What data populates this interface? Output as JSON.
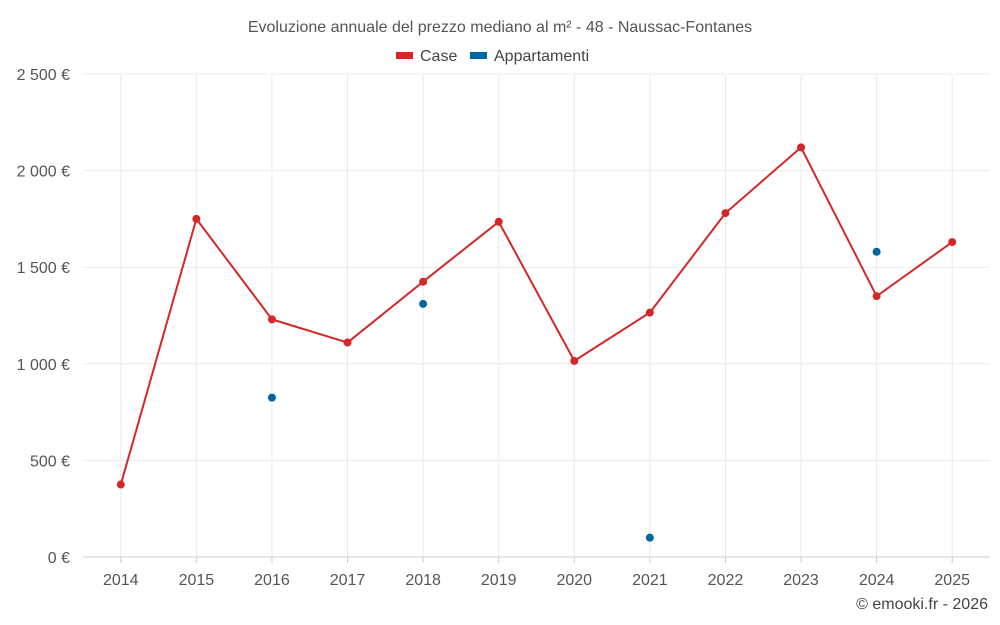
{
  "chart_data": {
    "type": "line",
    "title": "Evoluzione annuale del prezzo mediano al m² - 48 - Naussac-Fontanes",
    "categories": [
      "2014",
      "2015",
      "2016",
      "2017",
      "2018",
      "2019",
      "2020",
      "2021",
      "2022",
      "2023",
      "2024",
      "2025"
    ],
    "series": [
      {
        "name": "Case",
        "color": "#d62728",
        "style": "line",
        "values": [
          375,
          1750,
          1230,
          1110,
          1425,
          1735,
          1015,
          1265,
          1780,
          2120,
          1350,
          1630
        ]
      },
      {
        "name": "Appartamenti",
        "color": "#0066a1",
        "style": "points",
        "values": [
          null,
          null,
          825,
          null,
          1310,
          null,
          null,
          100,
          null,
          null,
          1580,
          null
        ]
      }
    ],
    "ylim": [
      0,
      2500
    ],
    "yticks": [
      0,
      500,
      1000,
      1500,
      2000,
      2500
    ],
    "ytick_labels": [
      "0 €",
      "500 €",
      "1 000 €",
      "1 500 €",
      "2 000 €",
      "2 500 €"
    ],
    "xlabel": "",
    "ylabel": "",
    "grid": true,
    "legend_position": "top-center"
  },
  "credit": "© emooki.fr - 2026"
}
